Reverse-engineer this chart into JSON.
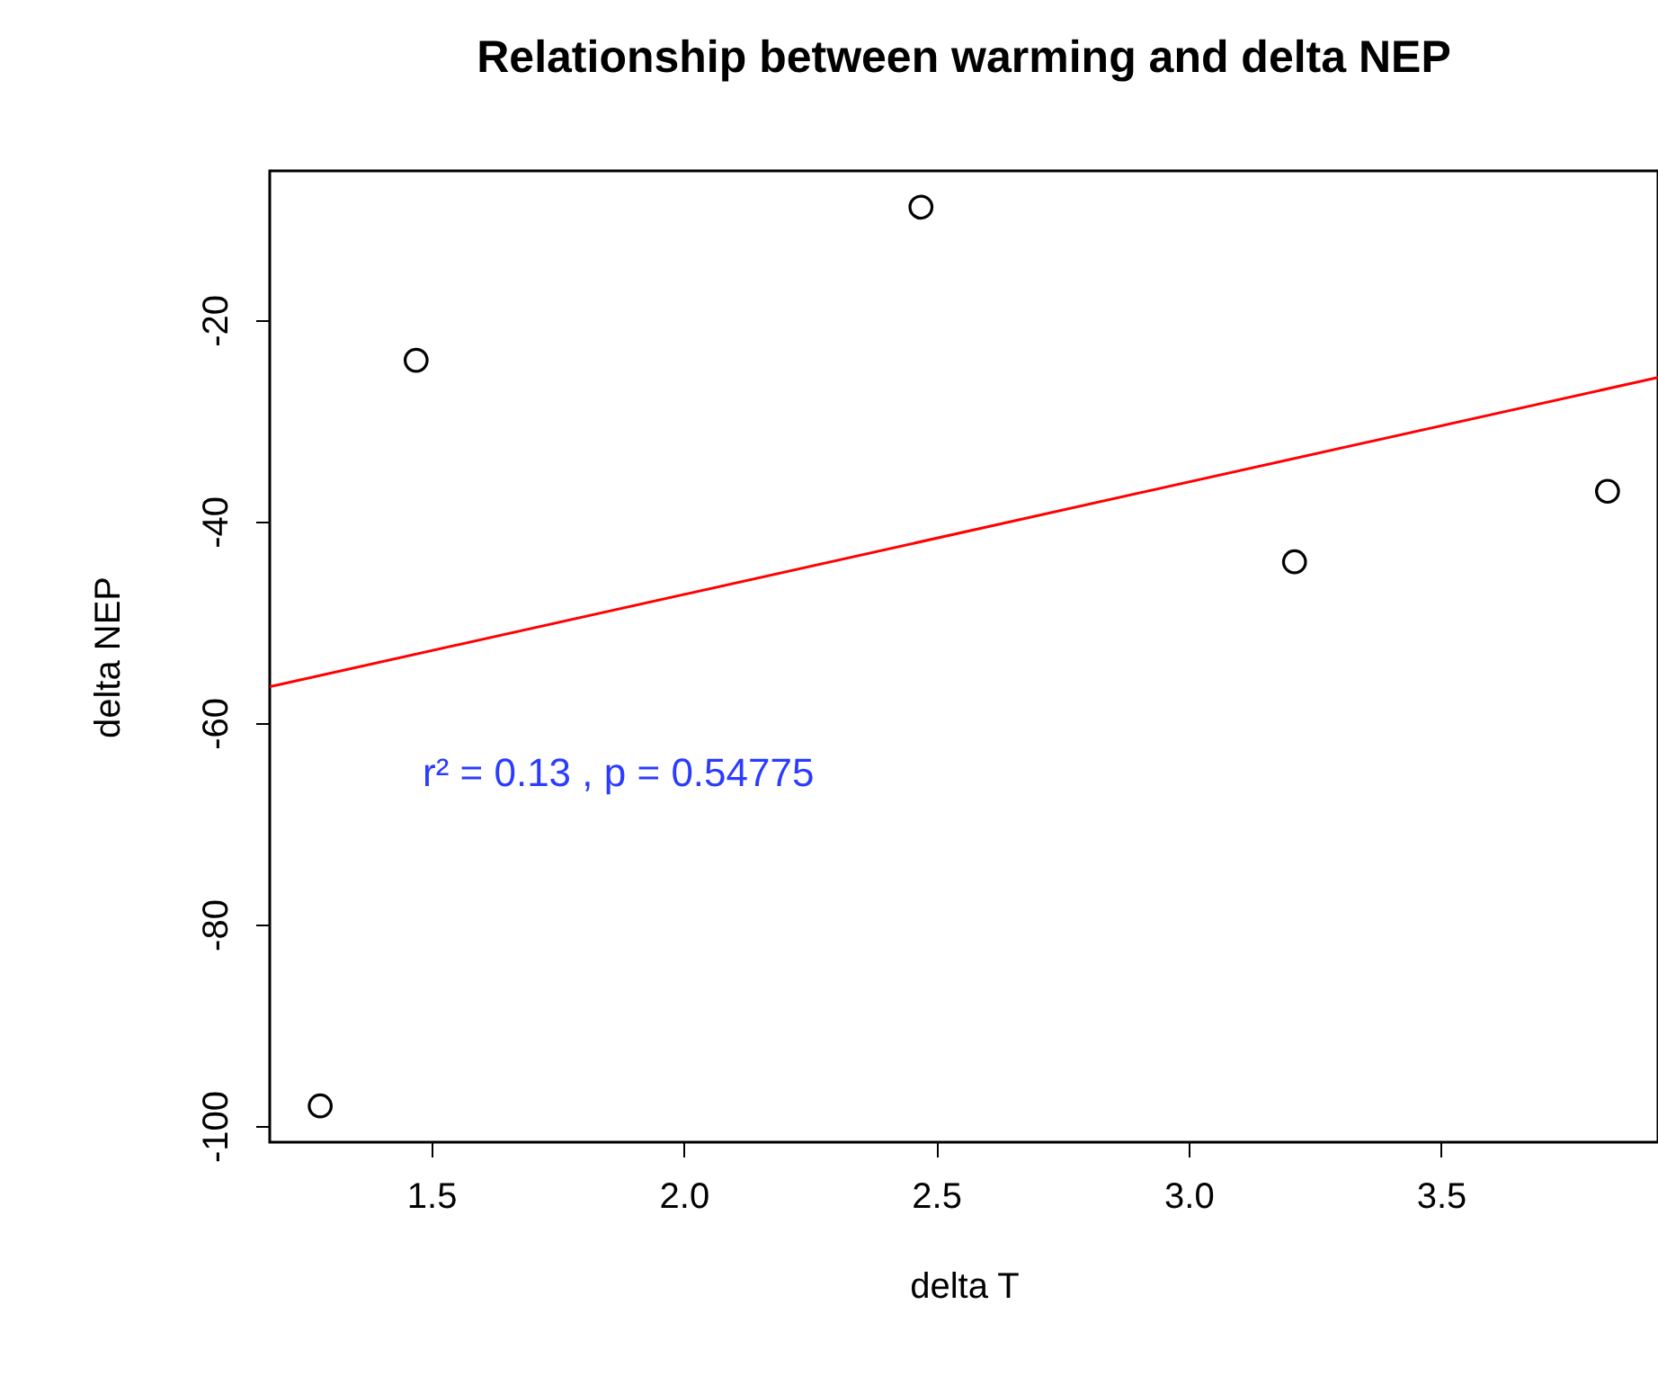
{
  "chart_data": {
    "type": "scatter",
    "title": "Relationship between warming and delta NEP",
    "xlabel": "delta T",
    "ylabel": "delta NEP",
    "series": [
      {
        "marker": "circle",
        "color": "#000000",
        "x": [
          1.28,
          1.47,
          2.47,
          3.21,
          3.83
        ],
        "values": [
          -98,
          -24,
          -8.8,
          -44,
          -37
        ]
      },
      {
        "type": "line",
        "marker": "none",
        "color": "#ff0000",
        "line_style": "solid",
        "x": [
          1.18,
          3.93
        ],
        "values": [
          -56.4,
          -25.7
        ]
      }
    ],
    "xlim": [
      1.18,
      3.93
    ],
    "ylim": [
      -101.6,
      -5.2
    ],
    "xticks": [
      1.5,
      {
        "value": 2,
        "label": "2.0"
      },
      2.5,
      {
        "value": 3,
        "label": "3.0"
      },
      3.5
    ],
    "yticks": [
      -100,
      -80,
      -60,
      -40,
      -20
    ],
    "annotations": [
      "r² = 0.13 , p = 0.54775"
    ]
  }
}
